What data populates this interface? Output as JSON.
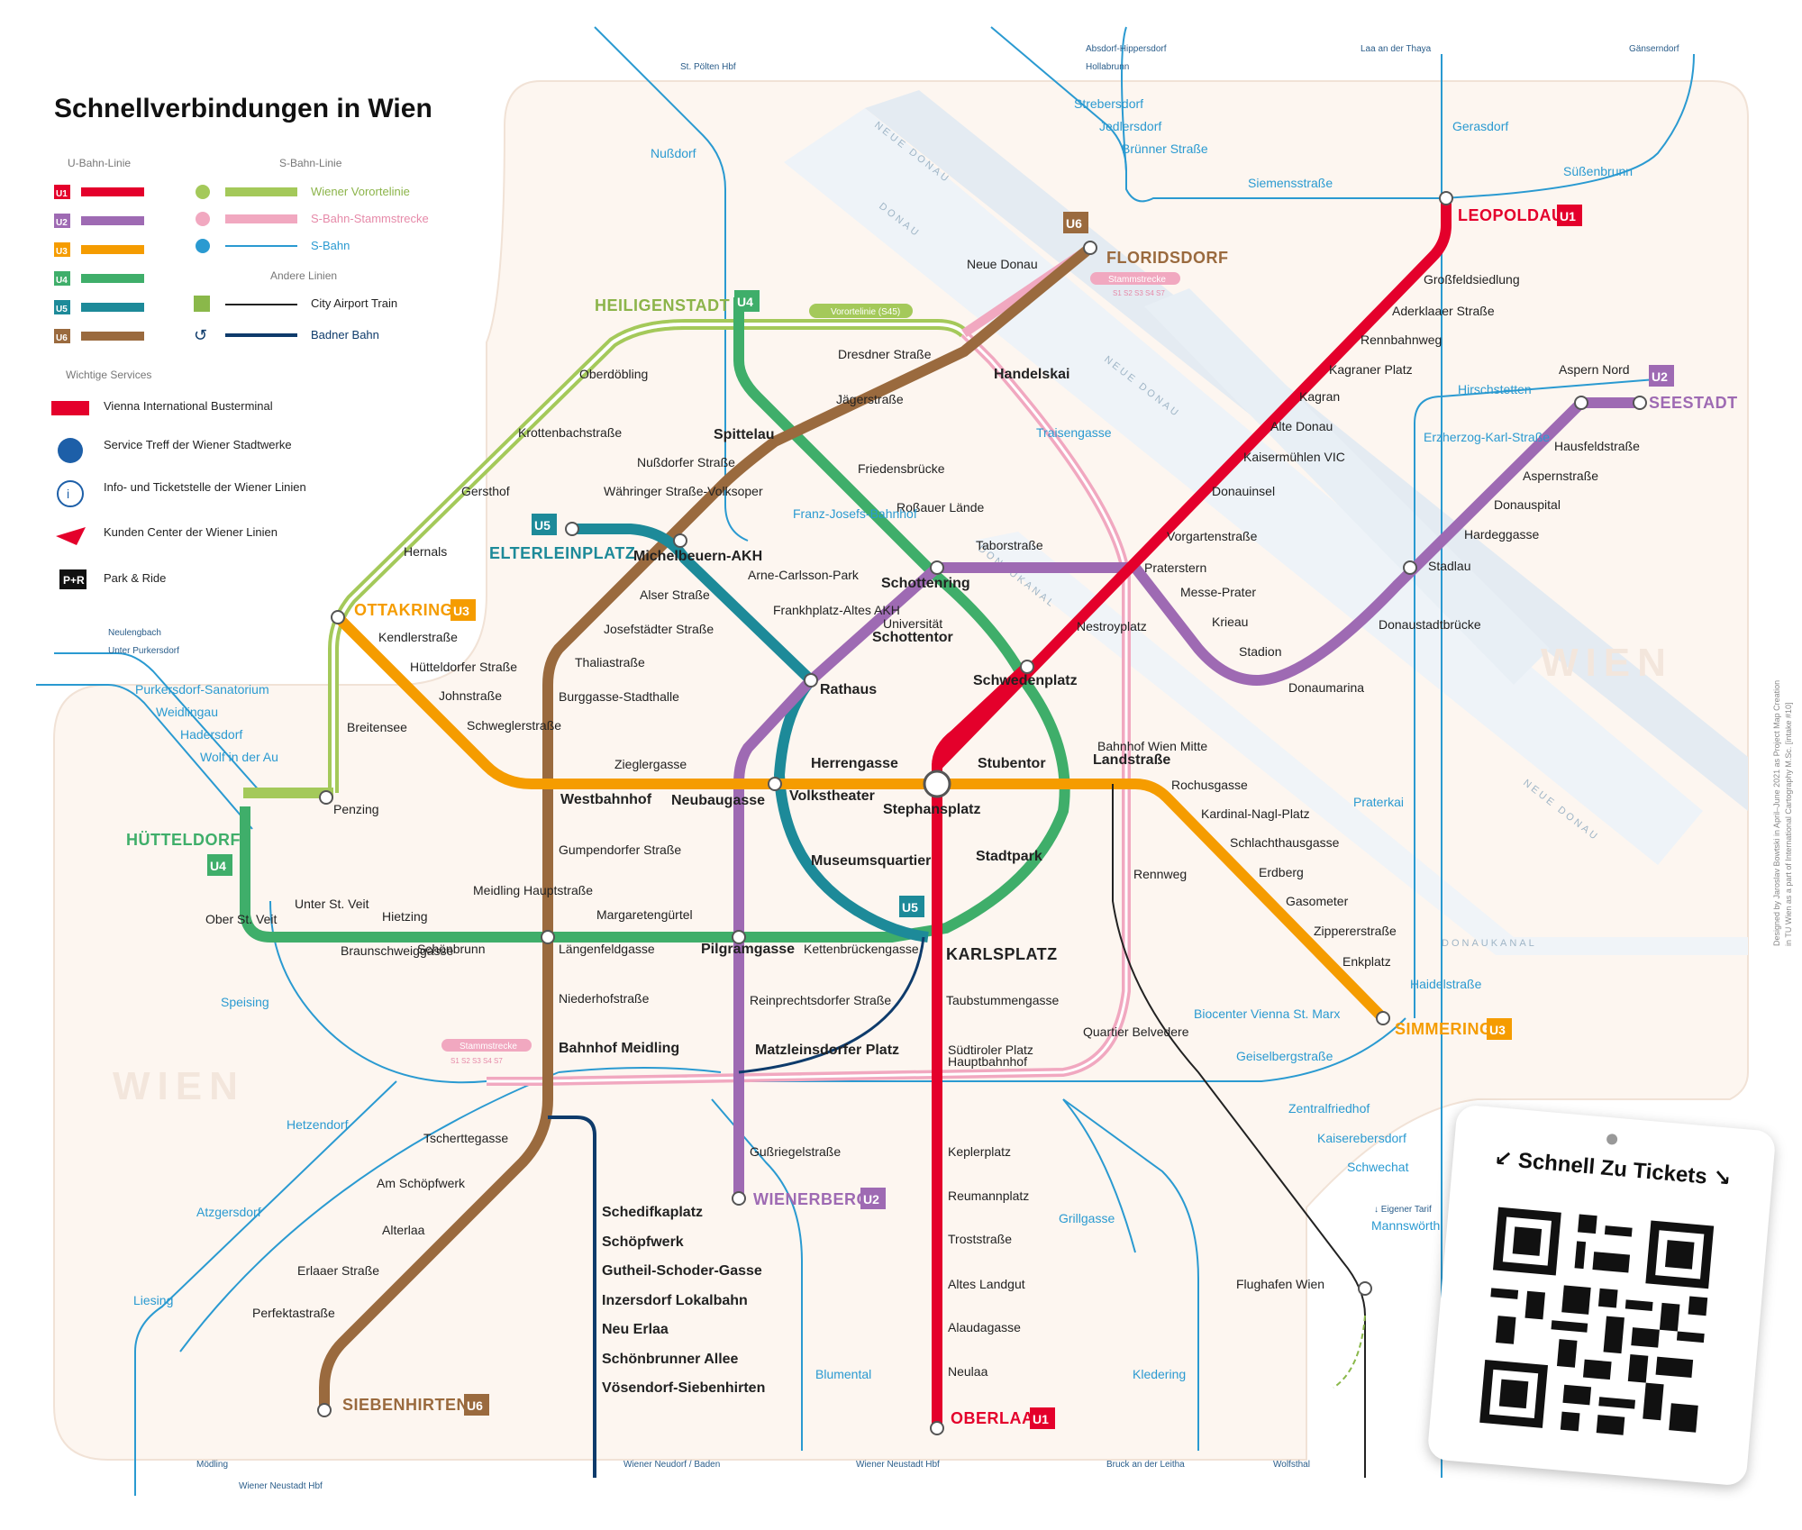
{
  "title": "Schnellverbindungen in Wien",
  "legend": {
    "ubahn_header": "U-Bahn-Linie",
    "sbahn_header": "S-Bahn-Linie",
    "andere_header": "Andere Linien",
    "services_header": "Wichtige Services",
    "ubahn": [
      {
        "code": "U1",
        "color": "#e4002b"
      },
      {
        "code": "U2",
        "color": "#9e6ab3"
      },
      {
        "code": "U3",
        "color": "#f59c00"
      },
      {
        "code": "U4",
        "color": "#3fae6a"
      },
      {
        "code": "U5",
        "color": "#1d8a99"
      },
      {
        "code": "U6",
        "color": "#9a6a3e"
      }
    ],
    "sbahn": [
      {
        "label": "Wiener Vorortelinie",
        "color": "#a4c95a"
      },
      {
        "label": "S-Bahn-Stammstrecke",
        "color": "#f1a8c0"
      },
      {
        "label": "S-Bahn",
        "color": "#2a9ad1"
      }
    ],
    "andere": [
      {
        "label": "City Airport Train",
        "color": "#222222"
      },
      {
        "label": "Badner Bahn",
        "color": "#0e3b6b"
      }
    ],
    "services": [
      "Vienna International Busterminal",
      "Service Treff der Wiener Stadtwerke",
      "Info- und Ticketstelle der Wiener Linien",
      "Kunden Center der Wiener Linien",
      "Park & Ride"
    ]
  },
  "termini": {
    "heiligenstadt": "HEILIGENSTADT",
    "floridsdorf": "FLORIDSDORF",
    "leopoldau": "LEOPOLDAU",
    "seestadt": "SEESTADT",
    "ottakring": "OTTAKRING",
    "huetteldorf": "HÜTTELDORF",
    "simmering": "SIMMERING",
    "wienerberg": "WIENERBERG",
    "siebenhirten": "SIEBENHIRTEN",
    "oberlaa": "OBERLAA",
    "karlsplatz": "KARLSPLATZ",
    "elterleinplatz": "ELTERLEINPLATZ"
  },
  "stations": {
    "u1": [
      "Großfeldsiedlung",
      "Aderklaaer Straße",
      "Rennbahnweg",
      "Kagraner Platz",
      "Kagran",
      "Alte Donau",
      "Kaisermühlen VIC",
      "Donauinsel",
      "Vorgartenstraße",
      "Praterstern",
      "Nestroyplatz",
      "Schwedenplatz",
      "Stephansplatz",
      "Taubstummengasse",
      "Südtiroler Platz",
      "Hauptbahnhof",
      "Keplerplatz",
      "Reumannplatz",
      "Troststraße",
      "Altes Landgut",
      "Alaudagasse",
      "Neulaa"
    ],
    "u2": [
      "Aspern Nord",
      "Hausfeldstraße",
      "Aspernstraße",
      "Donauspital",
      "Hardeggasse",
      "Stadlau",
      "Donaustadtbrücke",
      "Donaumarina",
      "Stadion",
      "Krieau",
      "Messe-Prater",
      "Taborstraße",
      "Schottenring",
      "Universität",
      "Schottentor",
      "Rathaus",
      "Volkstheater",
      "Museumsquartier",
      "Neubaugasse",
      "Pilgramgasse",
      "Reinprechtsdorfer Straße",
      "Matzleinsdorfer Platz",
      "Gußriegelstraße"
    ],
    "u3": [
      "Kendlerstraße",
      "Hütteldorfer Straße",
      "Johnstraße",
      "Schweglerstraße",
      "Westbahnhof",
      "Zieglergasse",
      "Neubaugasse",
      "Volkstheater",
      "Herrengasse",
      "Stubentor",
      "Landstraße",
      "Rochusgasse",
      "Kardinal-Nagl-Platz",
      "Schlachthausgasse",
      "Erdberg",
      "Gasometer",
      "Zippererstraße",
      "Enkplatz"
    ],
    "u4": [
      "Spittelau",
      "Friedensbrücke",
      "Roßauer Lände",
      "Schottenring",
      "Schwedenplatz",
      "Landstraße",
      "Stadtpark",
      "Ober St. Veit",
      "Unter St. Veit",
      "Braunschweiggasse",
      "Hietzing",
      "Schönbrunn",
      "Meidling Hauptstraße",
      "Längenfeldgasse",
      "Margaretengürtel",
      "Pilgramgasse",
      "Kettenbrückengasse"
    ],
    "u6": [
      "Neue Donau",
      "Handelskai",
      "Dresdner Straße",
      "Jägerstraße",
      "Spittelau",
      "Nußdorfer Straße",
      "Währinger Straße-Volksoper",
      "Michelbeuern-AKH",
      "Alser Straße",
      "Josefstädter Straße",
      "Thaliastraße",
      "Burggasse-Stadthalle",
      "Gumpendorfer Straße",
      "Niederhofstraße",
      "Bahnhof Meidling",
      "Tscherttegasse",
      "Am Schöpfwerk",
      "Alterlaa",
      "Erlaaer Straße",
      "Perfektastraße"
    ],
    "u5": [
      "Arne-Carlsson-Park",
      "Frankhplatz-Altes AKH"
    ],
    "vorortelinie": [
      "Oberdöbling",
      "Krottenbachstraße",
      "Gersthof",
      "Hernals",
      "Breitensee",
      "Penzing"
    ],
    "sbahn": [
      "Nußdorf",
      "Franz-Josefs-Bahnhof",
      "Strebersdorf",
      "Jedlersdorf",
      "Brünner Straße",
      "Siemensstraße",
      "Gerasdorf",
      "Süßenbrunn",
      "Traisengasse",
      "Hirschstetten",
      "Erzherzog-Karl-Straße",
      "Praterkai",
      "Rennweg",
      "Quartier Belvedere",
      "Haidelstraße",
      "Biocenter Vienna St. Marx",
      "Geiselbergstraße",
      "Zentralfriedhof",
      "Kaiserebersdorf",
      "Schwechat",
      "Mannswörth",
      "Flughafen Wien",
      "Purkersdorf-Sanatorium",
      "Weidlingau",
      "Hadersdorf",
      "Wolf in der Au",
      "Speising",
      "Hetzendorf",
      "Atzgersdorf",
      "Liesing",
      "Grillgasse",
      "Blumental",
      "Kledering",
      "Bahnhof Wien Mitte"
    ],
    "badner": [
      "Schedifkaplatz",
      "Schöpfwerk",
      "Gutheil-Schoder-Gasse",
      "Inzersdorf Lokalbahn",
      "Neu Erlaa",
      "Schönbrunner Allee",
      "Vösendorf-Siebenhirten"
    ]
  },
  "destinations": {
    "s40_top": "St. Pölten Hbf",
    "s4_top": "Absdorf-Hippersdorf",
    "s3_top": "Hollabrunn",
    "laa": "Laa an der Thaya",
    "gaenserndorf": "Gänserndorf",
    "s50": "Neulengbach",
    "s80": "Unter Purkersdorf",
    "s2_bottom": "Mödling",
    "wr_neustadt": "Wiener Neustadt Hbf",
    "badner_end": "Wiener Neudorf / Baden",
    "s60": "Wiener Neustadt Hbf",
    "s80_bottom": "Bruck an der Leitha",
    "wolfsthal": "Wolfsthal",
    "eigener": "↓ Eigener Tarif"
  },
  "badges": {
    "vorortelinie": "Vorortelinie (S45)",
    "stammstrecke": "Stammstrecke",
    "stamm_lines": "S1 S2 S3 S4 S7"
  },
  "water": {
    "neue_donau": "NEUE DONAU",
    "donau": "DONAU",
    "donaukanal": "DONAUKANAL"
  },
  "watermark": "WIEN",
  "ticket_label": "↙ Schnell Zu Tickets ↘",
  "credit1": "Designed by Jaroslav Bowtski in April–June 2021 as Project Map Creation",
  "credit2": "in TU Wien as a part of International Cartography M.Sc. [intake #10]"
}
